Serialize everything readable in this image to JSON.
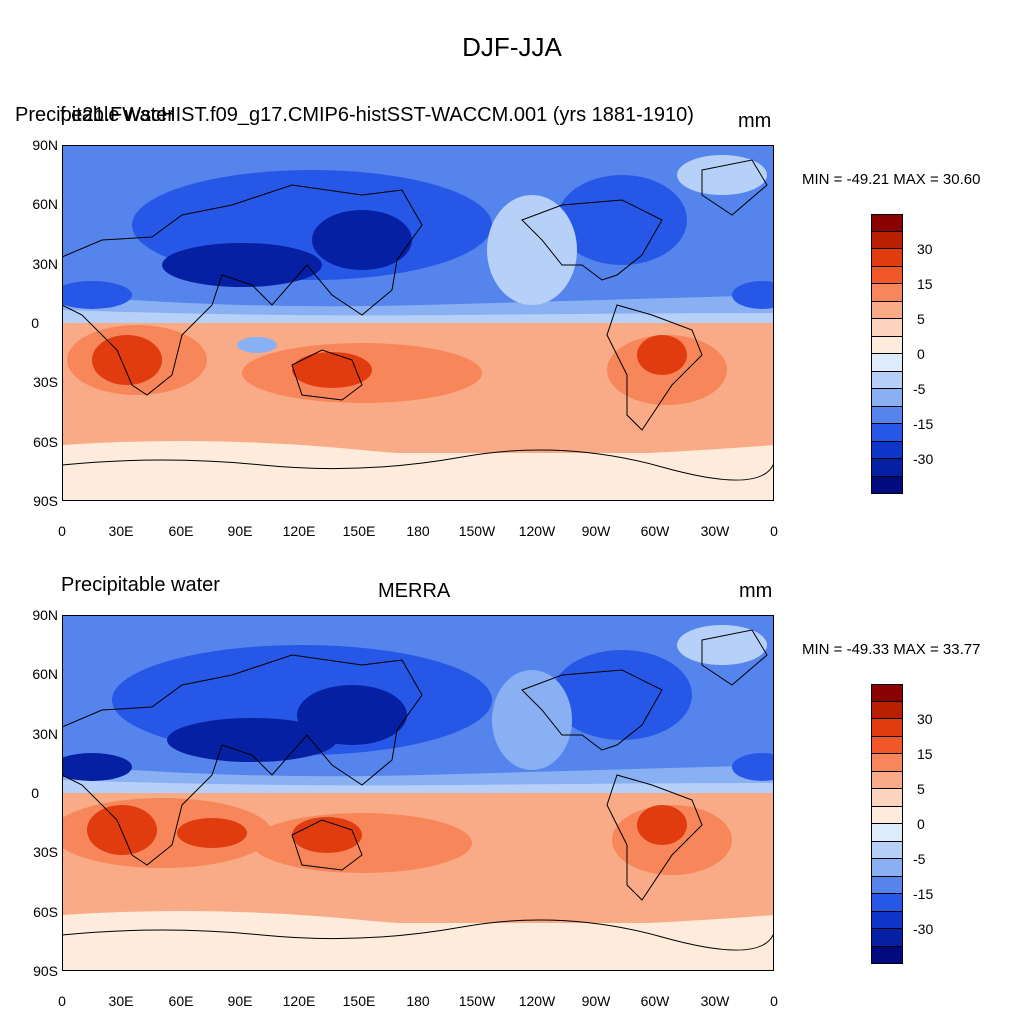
{
  "figure": {
    "title": "DJF-JJA"
  },
  "panels": [
    {
      "left_text": "Precipitable water",
      "center_text": "f.e21.FWscHIST.f09_g17.CMIP6-histSST-WACCM.001 (yrs 1881-1910)",
      "units": "mm",
      "stats": "MIN = -49.21 MAX =  30.60"
    },
    {
      "left_text": "Precipitable water",
      "center_text": "MERRA",
      "units": "mm",
      "stats": "MIN = -49.33 MAX =  33.77"
    }
  ],
  "axes": {
    "lat_labels": [
      "90N",
      "60N",
      "30N",
      "0",
      "30S",
      "60S",
      "90S"
    ],
    "lon_labels": [
      "0",
      "30E",
      "60E",
      "90E",
      "120E",
      "150E",
      "180",
      "150W",
      "120W",
      "90W",
      "60W",
      "30W",
      "0"
    ]
  },
  "colorbar": {
    "colors": [
      "#8b0000",
      "#b82000",
      "#e03c0f",
      "#f2572a",
      "#f7875b",
      "#f9aa86",
      "#fcd3bc",
      "#fdebdc",
      "#ddebfb",
      "#b7d0f7",
      "#8ab0f4",
      "#5585ec",
      "#2757e6",
      "#0d36c8",
      "#0520a3",
      "#020a80"
    ],
    "labels": [
      "30",
      "15",
      "5",
      "0",
      "-5",
      "-15",
      "-30"
    ],
    "label_steps": [
      2,
      4,
      6,
      8,
      10,
      12,
      14
    ]
  },
  "map_colors": {
    "polar_south": "#fdebdc",
    "warm_light": "#f9aa86",
    "warm_mid": "#f7875b",
    "warm_strong": "#e03c0f",
    "cool_pale": "#b7d0f7",
    "cool_light": "#8ab0f4",
    "cool_mid": "#5585ec",
    "cool_strong": "#2757e6",
    "cool_deep": "#0520a3",
    "coast": "#000000"
  }
}
